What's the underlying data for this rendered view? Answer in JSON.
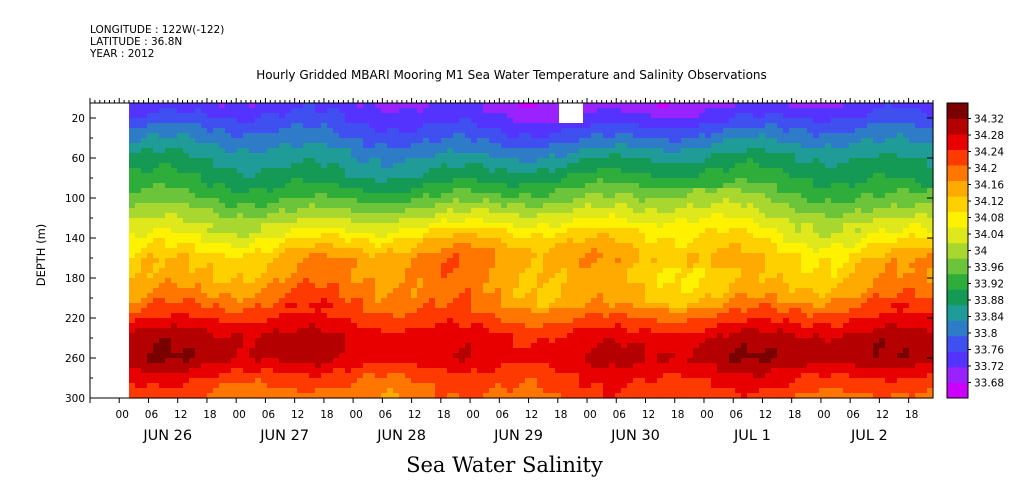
{
  "header": {
    "longitude": "LONGITUDE : 122W(-122)",
    "latitude": "LATITUDE : 36.8N",
    "year": "YEAR : 2012"
  },
  "chart_data": {
    "type": "heatmap",
    "title": "Hourly Gridded MBARI Mooring M1 Sea Water Temperature and Salinity Observations",
    "xlabel": "Sea Water Salinity",
    "ylabel": "DEPTH (m)",
    "y_ticks": [
      20,
      60,
      100,
      140,
      180,
      220,
      260,
      300
    ],
    "y_range": [
      5,
      300
    ],
    "y_inverted": true,
    "x_hour_ticks": [
      "00",
      "06",
      "12",
      "18",
      "00",
      "06",
      "12",
      "18",
      "00",
      "06",
      "12",
      "18",
      "00",
      "06",
      "12",
      "18",
      "00",
      "06",
      "12",
      "18",
      "00",
      "06",
      "12",
      "18",
      "00",
      "06",
      "12",
      "18"
    ],
    "x_day_labels": [
      "JUN 26",
      "JUN 27",
      "JUN 28",
      "JUN 29",
      "JUN 30",
      "JUL  1",
      "JUL  2"
    ],
    "x_range": [
      "2012-06-25T18:00",
      "2012-07-02T23:00"
    ],
    "data_start": "2012-06-26T01:00",
    "colorbar": {
      "labels": [
        "34.32",
        "34.28",
        "34.24",
        "34.2",
        "34.16",
        "34.12",
        "34.08",
        "34.04",
        "34",
        "33.96",
        "33.92",
        "33.88",
        "33.84",
        "33.8",
        "33.76",
        "33.72",
        "33.68"
      ],
      "min": 33.68,
      "max": 34.32,
      "colors": [
        "#cc00ff",
        "#9922ff",
        "#5533ff",
        "#3f4ff0",
        "#2e7cc8",
        "#1f9c98",
        "#159a55",
        "#2fad3a",
        "#6cc43a",
        "#a8d830",
        "#dfe81a",
        "#fff200",
        "#ffd000",
        "#ffaa00",
        "#ff7700",
        "#ff3a00",
        "#e80000",
        "#b50000",
        "#7a0000"
      ]
    },
    "depth_profile": [
      {
        "depth": 5,
        "salinity": 33.74
      },
      {
        "depth": 20,
        "salinity": 33.77
      },
      {
        "depth": 40,
        "salinity": 33.82
      },
      {
        "depth": 60,
        "salinity": 33.87
      },
      {
        "depth": 80,
        "salinity": 33.91
      },
      {
        "depth": 100,
        "salinity": 33.96
      },
      {
        "depth": 120,
        "salinity": 34.02
      },
      {
        "depth": 140,
        "salinity": 34.08
      },
      {
        "depth": 160,
        "salinity": 34.13
      },
      {
        "depth": 180,
        "salinity": 34.13
      },
      {
        "depth": 200,
        "salinity": 34.15
      },
      {
        "depth": 220,
        "salinity": 34.2
      },
      {
        "depth": 240,
        "salinity": 34.25
      },
      {
        "depth": 260,
        "salinity": 34.26
      },
      {
        "depth": 280,
        "salinity": 34.21
      },
      {
        "depth": 300,
        "salinity": 34.18
      }
    ]
  }
}
